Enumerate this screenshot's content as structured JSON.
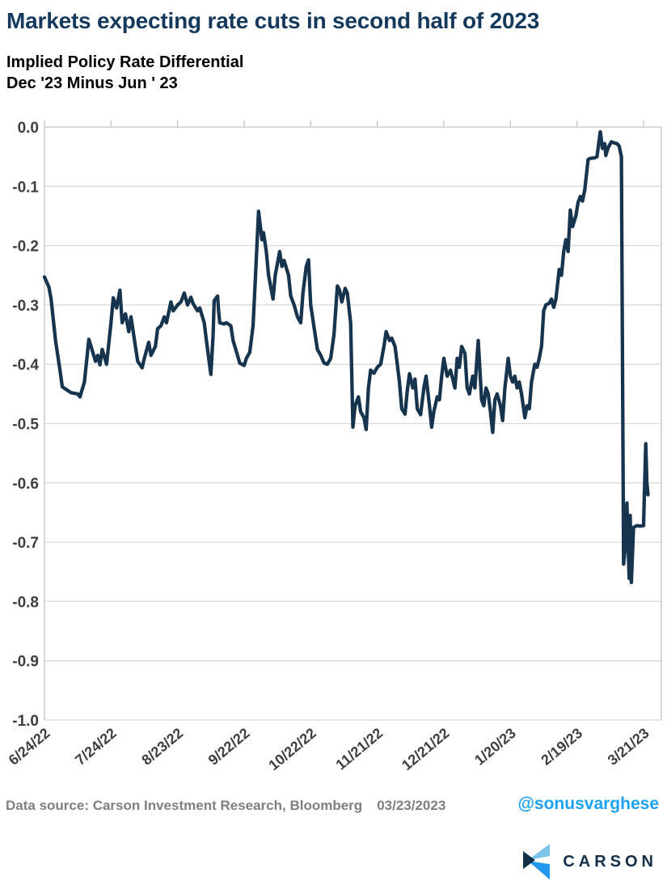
{
  "header": {
    "title": "Markets expecting rate cuts in second half of 2023",
    "subtitle_line1": "Implied Policy Rate Differential",
    "subtitle_line2": "Dec '23 Minus Jun ' 23"
  },
  "footer": {
    "source_text": "Data source:  Carson Investment Research, Bloomberg",
    "date": "03/23/2023",
    "handle": "@sonusvarghese",
    "brand": "CARSON"
  },
  "colors": {
    "title_navy": "#15395c",
    "line": "#16344e",
    "gridline": "#d9d9d9",
    "axis": "#c3c3c3",
    "tick_label": "#3f3f3f",
    "footer_gray": "#7f7f7f",
    "twitter_blue": "#1da1f2",
    "brand_navy": "#13304a",
    "logo_light_blue": "#7dc4ea",
    "logo_bright_blue": "#2397ec"
  },
  "chart_data": {
    "type": "line",
    "title": "Markets expecting rate cuts in second half of 2023",
    "subtitle": "Implied Policy Rate Differential Dec '23 Minus Jun ' 23",
    "xlabel": "",
    "ylabel": "",
    "ylim": [
      -1.0,
      0.0
    ],
    "grid": true,
    "legend": "none",
    "y_tick_labels": [
      "0.0",
      "-0.1",
      "-0.2",
      "-0.3",
      "-0.4",
      "-0.5",
      "-0.6",
      "-0.7",
      "-0.8",
      "-0.9",
      "-1.0"
    ],
    "y_tick_values": [
      0,
      -0.1,
      -0.2,
      -0.3,
      -0.4,
      -0.5,
      -0.6,
      -0.7,
      -0.8,
      -0.9,
      -1.0
    ],
    "x_tick_labels": [
      "6/24/22",
      "7/24/22",
      "8/23/22",
      "9/22/22",
      "10/22/22",
      "11/21/22",
      "12/21/22",
      "1/20/23",
      "2/19/23",
      "3/21/23"
    ],
    "x_tick_days": [
      0,
      30,
      60,
      90,
      120,
      150,
      180,
      210,
      240,
      270
    ],
    "x_domain_days": [
      0,
      272
    ],
    "series": [
      {
        "name": "Implied Policy Rate Differential Dec '23 Minus Jun ' 23",
        "points": [
          [
            0,
            -0.253
          ],
          [
            2,
            -0.27
          ],
          [
            3,
            -0.29
          ],
          [
            5,
            -0.36
          ],
          [
            7,
            -0.41
          ],
          [
            8,
            -0.438
          ],
          [
            10,
            -0.443
          ],
          [
            12,
            -0.448
          ],
          [
            15,
            -0.45
          ],
          [
            16,
            -0.455
          ],
          [
            18,
            -0.43
          ],
          [
            20,
            -0.358
          ],
          [
            21,
            -0.37
          ],
          [
            23,
            -0.395
          ],
          [
            24,
            -0.385
          ],
          [
            25,
            -0.401
          ],
          [
            26,
            -0.375
          ],
          [
            28,
            -0.4
          ],
          [
            30,
            -0.33
          ],
          [
            31,
            -0.288
          ],
          [
            32.5,
            -0.305
          ],
          [
            34,
            -0.275
          ],
          [
            35,
            -0.33
          ],
          [
            36.5,
            -0.315
          ],
          [
            38,
            -0.345
          ],
          [
            39,
            -0.32
          ],
          [
            41,
            -0.37
          ],
          [
            42,
            -0.395
          ],
          [
            44,
            -0.406
          ],
          [
            45,
            -0.39
          ],
          [
            47,
            -0.363
          ],
          [
            48,
            -0.385
          ],
          [
            50,
            -0.37
          ],
          [
            51,
            -0.34
          ],
          [
            52.5,
            -0.335
          ],
          [
            54,
            -0.32
          ],
          [
            55,
            -0.33
          ],
          [
            57,
            -0.295
          ],
          [
            58,
            -0.31
          ],
          [
            60,
            -0.3
          ],
          [
            61.5,
            -0.295
          ],
          [
            63,
            -0.28
          ],
          [
            64.5,
            -0.3
          ],
          [
            66,
            -0.287
          ],
          [
            67,
            -0.298
          ],
          [
            69,
            -0.31
          ],
          [
            70,
            -0.305
          ],
          [
            72,
            -0.33
          ],
          [
            73,
            -0.36
          ],
          [
            75,
            -0.417
          ],
          [
            76,
            -0.35
          ],
          [
            76.5,
            -0.293
          ],
          [
            78,
            -0.285
          ],
          [
            78.5,
            -0.31
          ],
          [
            79,
            -0.33
          ],
          [
            81,
            -0.332
          ],
          [
            82,
            -0.33
          ],
          [
            84,
            -0.335
          ],
          [
            85,
            -0.36
          ],
          [
            87,
            -0.385
          ],
          [
            88,
            -0.398
          ],
          [
            90,
            -0.402
          ],
          [
            91,
            -0.39
          ],
          [
            92.5,
            -0.38
          ],
          [
            94,
            -0.335
          ],
          [
            95,
            -0.26
          ],
          [
            96.5,
            -0.142
          ],
          [
            98,
            -0.19
          ],
          [
            98.7,
            -0.178
          ],
          [
            100,
            -0.21
          ],
          [
            101,
            -0.25
          ],
          [
            103,
            -0.29
          ],
          [
            104,
            -0.25
          ],
          [
            106,
            -0.21
          ],
          [
            107,
            -0.235
          ],
          [
            108,
            -0.225
          ],
          [
            110,
            -0.25
          ],
          [
            111,
            -0.285
          ],
          [
            112.5,
            -0.3
          ],
          [
            114,
            -0.32
          ],
          [
            115.5,
            -0.33
          ],
          [
            116.5,
            -0.28
          ],
          [
            118,
            -0.235
          ],
          [
            119,
            -0.224
          ],
          [
            120,
            -0.3
          ],
          [
            122,
            -0.35
          ],
          [
            123,
            -0.375
          ],
          [
            124.5,
            -0.385
          ],
          [
            126,
            -0.398
          ],
          [
            127.5,
            -0.4
          ],
          [
            129,
            -0.39
          ],
          [
            130.5,
            -0.35
          ],
          [
            132,
            -0.268
          ],
          [
            133,
            -0.275
          ],
          [
            134,
            -0.295
          ],
          [
            135.5,
            -0.272
          ],
          [
            136.5,
            -0.28
          ],
          [
            138,
            -0.33
          ],
          [
            139,
            -0.506
          ],
          [
            140,
            -0.47
          ],
          [
            141.5,
            -0.455
          ],
          [
            142.5,
            -0.48
          ],
          [
            144,
            -0.49
          ],
          [
            145,
            -0.51
          ],
          [
            146,
            -0.44
          ],
          [
            147,
            -0.41
          ],
          [
            148.5,
            -0.415
          ],
          [
            150,
            -0.405
          ],
          [
            151.5,
            -0.4
          ],
          [
            153,
            -0.37
          ],
          [
            154,
            -0.345
          ],
          [
            155.5,
            -0.36
          ],
          [
            156.5,
            -0.356
          ],
          [
            158,
            -0.37
          ],
          [
            159,
            -0.4
          ],
          [
            160,
            -0.43
          ],
          [
            161,
            -0.475
          ],
          [
            162.5,
            -0.484
          ],
          [
            163.5,
            -0.445
          ],
          [
            164.5,
            -0.416
          ],
          [
            166,
            -0.44
          ],
          [
            167,
            -0.425
          ],
          [
            168,
            -0.475
          ],
          [
            169.5,
            -0.485
          ],
          [
            171,
            -0.44
          ],
          [
            172,
            -0.42
          ],
          [
            173.5,
            -0.47
          ],
          [
            174.5,
            -0.506
          ],
          [
            175.5,
            -0.48
          ],
          [
            177,
            -0.455
          ],
          [
            178,
            -0.46
          ],
          [
            179,
            -0.42
          ],
          [
            180,
            -0.39
          ],
          [
            181.5,
            -0.42
          ],
          [
            183,
            -0.41
          ],
          [
            184,
            -0.425
          ],
          [
            185,
            -0.44
          ],
          [
            186,
            -0.39
          ],
          [
            187,
            -0.405
          ],
          [
            188,
            -0.37
          ],
          [
            189.5,
            -0.382
          ],
          [
            190.5,
            -0.44
          ],
          [
            191.5,
            -0.45
          ],
          [
            193,
            -0.42
          ],
          [
            194,
            -0.44
          ],
          [
            195.5,
            -0.36
          ],
          [
            197,
            -0.46
          ],
          [
            198,
            -0.47
          ],
          [
            199,
            -0.44
          ],
          [
            200,
            -0.45
          ],
          [
            201,
            -0.48
          ],
          [
            202,
            -0.515
          ],
          [
            203,
            -0.46
          ],
          [
            204,
            -0.45
          ],
          [
            205.5,
            -0.47
          ],
          [
            206.5,
            -0.495
          ],
          [
            207.5,
            -0.44
          ],
          [
            209,
            -0.39
          ],
          [
            210,
            -0.42
          ],
          [
            211,
            -0.43
          ],
          [
            212,
            -0.42
          ],
          [
            213,
            -0.44
          ],
          [
            214,
            -0.43
          ],
          [
            215,
            -0.45
          ],
          [
            216.5,
            -0.49
          ],
          [
            217.5,
            -0.47
          ],
          [
            218.5,
            -0.475
          ],
          [
            219.5,
            -0.43
          ],
          [
            221,
            -0.4
          ],
          [
            222,
            -0.405
          ],
          [
            223,
            -0.39
          ],
          [
            224,
            -0.37
          ],
          [
            225,
            -0.31
          ],
          [
            226,
            -0.3
          ],
          [
            227.5,
            -0.297
          ],
          [
            228.5,
            -0.29
          ],
          [
            229.5,
            -0.304
          ],
          [
            230.5,
            -0.29
          ],
          [
            232,
            -0.24
          ],
          [
            233,
            -0.25
          ],
          [
            234,
            -0.21
          ],
          [
            235,
            -0.19
          ],
          [
            236,
            -0.21
          ],
          [
            237,
            -0.14
          ],
          [
            238,
            -0.168
          ],
          [
            239.5,
            -0.15
          ],
          [
            240.5,
            -0.127
          ],
          [
            241.5,
            -0.117
          ],
          [
            242.5,
            -0.125
          ],
          [
            243.5,
            -0.106
          ],
          [
            245,
            -0.055
          ],
          [
            246,
            -0.053
          ],
          [
            248,
            -0.052
          ],
          [
            249,
            -0.05
          ],
          [
            250.5,
            -0.008
          ],
          [
            251.5,
            -0.036
          ],
          [
            252.5,
            -0.028
          ],
          [
            253,
            -0.048
          ],
          [
            254,
            -0.035
          ],
          [
            255.5,
            -0.025
          ],
          [
            257,
            -0.027
          ],
          [
            258,
            -0.028
          ],
          [
            259,
            -0.032
          ],
          [
            260,
            -0.05
          ],
          [
            261,
            -0.737
          ],
          [
            262,
            -0.7
          ],
          [
            262.5,
            -0.634
          ],
          [
            263.5,
            -0.761
          ],
          [
            264,
            -0.655
          ],
          [
            264.5,
            -0.768
          ],
          [
            265.5,
            -0.675
          ],
          [
            267,
            -0.672
          ],
          [
            268.5,
            -0.673
          ],
          [
            270,
            -0.672
          ],
          [
            271,
            -0.534
          ],
          [
            271.5,
            -0.6
          ],
          [
            272,
            -0.62
          ]
        ]
      }
    ]
  }
}
